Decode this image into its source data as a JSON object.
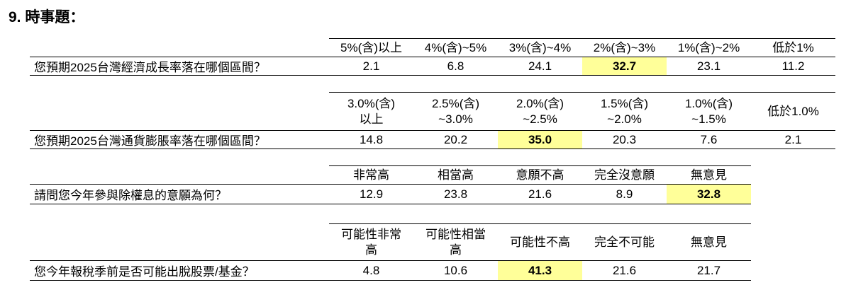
{
  "heading": {
    "number": "9.",
    "title": "時事題："
  },
  "colors": {
    "highlight": "#ffff99"
  },
  "tables": [
    {
      "question": "您預期2025台灣經濟成長率落在哪個區間？",
      "headers": [
        "5%(含)以上",
        "4%(含)~5%",
        "3%(含)~4%",
        "2%(含)~3%",
        "1%(含)~2%",
        "低於1%"
      ],
      "values": [
        "2.1",
        "6.8",
        "24.1",
        "32.7",
        "23.1",
        "11.2"
      ],
      "highlight_index": 3
    },
    {
      "question": "您預期2025台灣通貨膨脹率落在哪個區間？",
      "headers": [
        "3.0%(含)\n以上",
        "2.5%(含)\n~3.0%",
        "2.0%(含)\n~2.5%",
        "1.5%(含)\n~2.0%",
        "1.0%(含)\n~1.5%",
        "低於1.0%"
      ],
      "values": [
        "14.8",
        "20.2",
        "35.0",
        "20.3",
        "7.6",
        "2.1"
      ],
      "highlight_index": 2
    },
    {
      "question": "請問您今年參與除權息的意願為何？",
      "headers": [
        "非常高",
        "相當高",
        "意願不高",
        "完全沒意願",
        "無意見"
      ],
      "values": [
        "12.9",
        "23.8",
        "21.6",
        "8.9",
        "32.8"
      ],
      "highlight_index": 4
    },
    {
      "question": "您今年報稅季前是否可能出脫股票/基金？",
      "headers": [
        "可能性非常\n高",
        "可能性相當\n高",
        "可能性不高",
        "完全不可能",
        "無意見"
      ],
      "values": [
        "4.8",
        "10.6",
        "41.3",
        "21.6",
        "21.7"
      ],
      "highlight_index": 2
    }
  ]
}
